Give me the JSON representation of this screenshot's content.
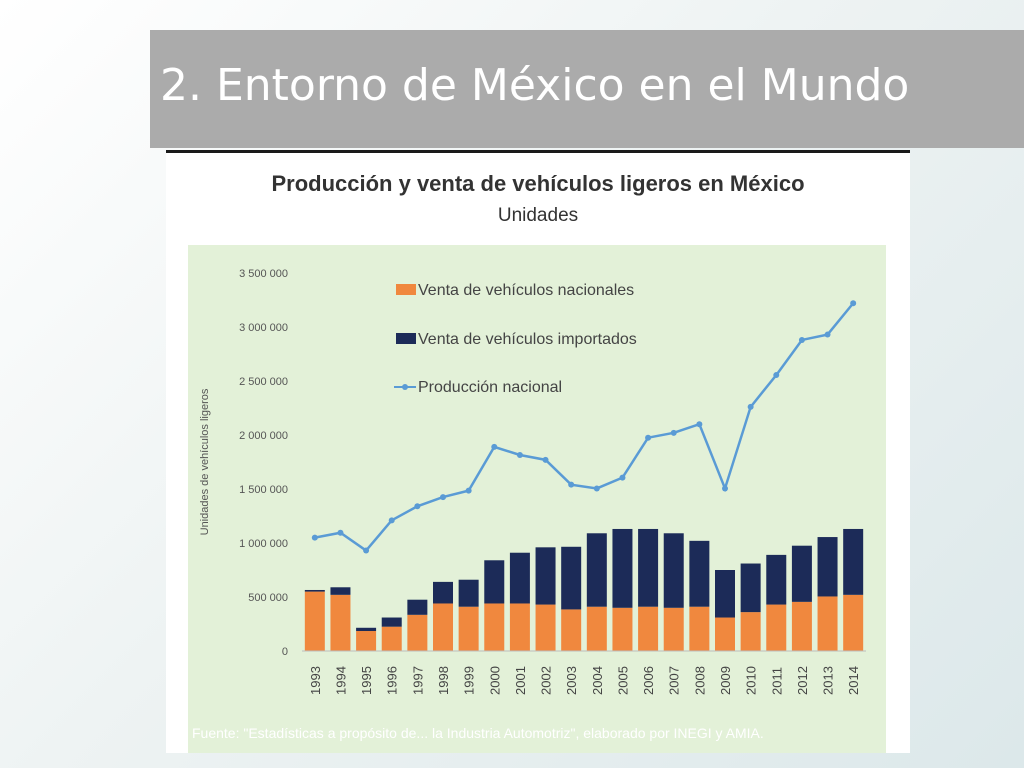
{
  "slide": {
    "title": "2. Entorno de México en el Mundo",
    "source": "Fuente: \"Estadísticas a propósito de... la Industria Automotriz\", elaborado por INEGI y AMIA."
  },
  "colors": {
    "plot_bg": "#e3f1d8",
    "nacionales": "#f0883e",
    "importados": "#1c2b58",
    "produccion": "#5a9bd5",
    "title_bar": "#ababab"
  },
  "chart_data": {
    "type": "bar",
    "title": "Producción y venta de vehículos ligeros en México",
    "subtitle": "Unidades",
    "ylabel": "Unidades de vehículos ligeros",
    "xlabel": "",
    "ylim": [
      0,
      3500000
    ],
    "yticks": [
      0,
      500000,
      1000000,
      1500000,
      2000000,
      2500000,
      3000000,
      3500000
    ],
    "ytick_labels": [
      "0",
      "500 000",
      "1 000 000",
      "1 500 000",
      "2 000 000",
      "2 500 000",
      "3 000 000",
      "3 500 000"
    ],
    "grid": false,
    "legend_position": "top-left",
    "categories": [
      "1993",
      "1994",
      "1995",
      "1996",
      "1997",
      "1998",
      "1999",
      "2000",
      "2001",
      "2002",
      "2003",
      "2004",
      "2005",
      "2006",
      "2007",
      "2008",
      "2009",
      "2010",
      "2011",
      "2012",
      "2013",
      "2014"
    ],
    "series": [
      {
        "name": "Venta de vehículos nacionales",
        "kind": "bar",
        "stack": true,
        "values": [
          550000,
          520000,
          185000,
          225000,
          335000,
          440000,
          410000,
          440000,
          440000,
          430000,
          385000,
          410000,
          400000,
          410000,
          400000,
          410000,
          310000,
          360000,
          430000,
          455000,
          505000,
          520000
        ]
      },
      {
        "name": "Venta de vehículos importados",
        "kind": "bar",
        "stack": true,
        "values": [
          15000,
          70000,
          30000,
          85000,
          140000,
          200000,
          250000,
          400000,
          470000,
          530000,
          580000,
          680000,
          730000,
          720000,
          690000,
          610000,
          440000,
          450000,
          460000,
          520000,
          550000,
          610000
        ]
      },
      {
        "name": "Producción nacional",
        "kind": "line",
        "values": [
          1050000,
          1095000,
          930000,
          1210000,
          1340000,
          1425000,
          1485000,
          1890000,
          1815000,
          1770000,
          1540000,
          1505000,
          1605000,
          1975000,
          2020000,
          2100000,
          1505000,
          2260000,
          2555000,
          2880000,
          2930000,
          3220000
        ]
      }
    ]
  }
}
